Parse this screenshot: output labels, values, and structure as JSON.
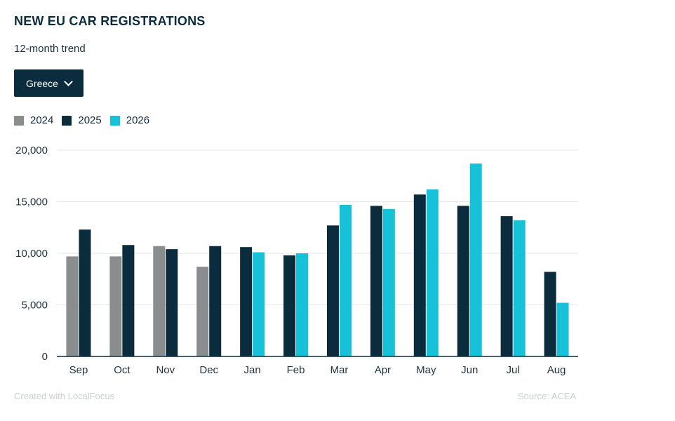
{
  "header": {
    "title": "NEW EU CAR REGISTRATIONS",
    "subtitle": "12-month trend"
  },
  "country_select": {
    "selected": "Greece"
  },
  "footer": {
    "credit": "Created with LocalFocus",
    "source": "Source:  ACEA"
  },
  "colors": {
    "2024": "#8a8d8e",
    "2025": "#0b2c3d",
    "2026": "#17c2d8",
    "grid": "#e3e6e8",
    "axis": "#0b2c3d"
  },
  "chart_data": {
    "type": "bar",
    "title": "NEW EU CAR REGISTRATIONS",
    "subtitle": "12-month trend",
    "xlabel": "",
    "ylabel": "",
    "ylim": [
      0,
      20000
    ],
    "yticks": [
      0,
      5000,
      10000,
      15000,
      20000
    ],
    "ytick_labels": [
      "0",
      "5,000",
      "10,000",
      "15,000",
      "20,000"
    ],
    "grid": true,
    "legend_position": "top-left",
    "categories": [
      "Sep",
      "Oct",
      "Nov",
      "Dec",
      "Jan",
      "Feb",
      "Mar",
      "Apr",
      "May",
      "Jun",
      "Jul",
      "Aug"
    ],
    "series": [
      {
        "name": "2024",
        "values": [
          9700,
          9700,
          10700,
          8700,
          null,
          null,
          null,
          null,
          null,
          null,
          null,
          null
        ]
      },
      {
        "name": "2025",
        "values": [
          12300,
          10800,
          10400,
          10700,
          10600,
          9800,
          12700,
          14600,
          15700,
          14600,
          13600,
          8200
        ]
      },
      {
        "name": "2026",
        "values": [
          null,
          null,
          null,
          null,
          10100,
          10000,
          14700,
          14300,
          16200,
          18700,
          13200,
          5200
        ]
      }
    ]
  }
}
